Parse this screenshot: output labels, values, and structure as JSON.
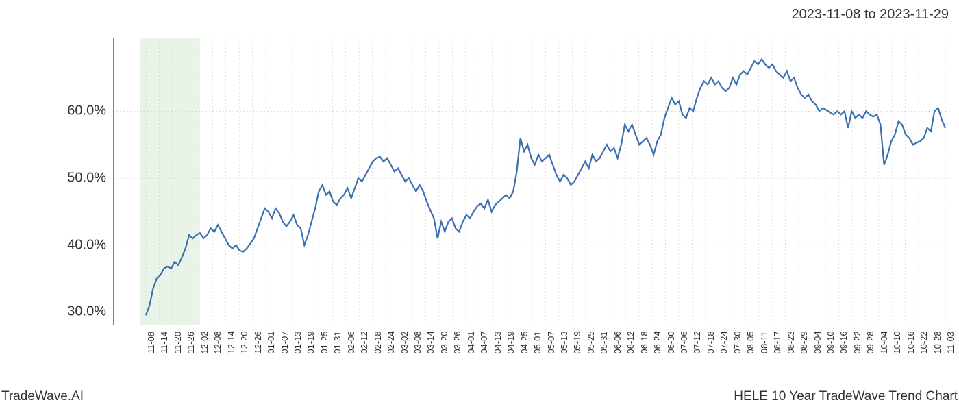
{
  "header": {
    "date_range": "2023-11-08 to 2023-11-29"
  },
  "footer": {
    "left": "TradeWave.AI",
    "right": "HELE 10 Year TradeWave Trend Chart"
  },
  "chart": {
    "type": "line",
    "background_color": "#ffffff",
    "line_color": "#3a6fb0",
    "line_width": 2.2,
    "grid_color": "#cccccc",
    "grid_dash": "2,3",
    "axis_color": "#333333",
    "highlight_band": {
      "start_label": "11-08",
      "end_label": "11-29",
      "fill_color": "#d9ead3",
      "fill_opacity": 0.55
    },
    "ylim": [
      28,
      71
    ],
    "yticks": [
      30.0,
      40.0,
      50.0,
      60.0
    ],
    "ytick_labels": [
      "30.0%",
      "40.0%",
      "50.0%",
      "60.0%"
    ],
    "xtick_labels": [
      "11-08",
      "11-14",
      "11-20",
      "11-26",
      "12-02",
      "12-08",
      "12-14",
      "12-20",
      "12-26",
      "01-01",
      "01-07",
      "01-13",
      "01-19",
      "01-25",
      "01-31",
      "02-06",
      "02-12",
      "02-18",
      "02-24",
      "03-02",
      "03-08",
      "03-14",
      "03-20",
      "03-26",
      "04-01",
      "04-07",
      "04-13",
      "04-19",
      "04-25",
      "05-01",
      "05-07",
      "05-13",
      "05-19",
      "05-25",
      "05-31",
      "06-06",
      "06-12",
      "06-18",
      "06-24",
      "06-30",
      "07-06",
      "07-12",
      "07-18",
      "07-24",
      "07-30",
      "08-05",
      "08-11",
      "08-17",
      "08-23",
      "08-29",
      "09-04",
      "09-10",
      "09-16",
      "09-22",
      "09-28",
      "10-04",
      "10-10",
      "10-16",
      "10-22",
      "10-28",
      "11-03"
    ],
    "label_fontsize": 13,
    "ylabel_fontsize": 20,
    "series": [
      29.5,
      31.0,
      33.5,
      35.0,
      35.5,
      36.5,
      36.8,
      36.5,
      37.5,
      37.0,
      38.2,
      39.5,
      41.5,
      41.0,
      41.5,
      41.8,
      41.0,
      41.5,
      42.5,
      42.0,
      43.0,
      42.0,
      41.0,
      40.0,
      39.5,
      40.0,
      39.2,
      39.0,
      39.5,
      40.2,
      41.0,
      42.5,
      44.0,
      45.5,
      45.0,
      44.0,
      45.5,
      44.8,
      43.5,
      42.8,
      43.5,
      44.5,
      43.0,
      42.5,
      40.0,
      41.5,
      43.5,
      45.5,
      48.0,
      49.0,
      47.5,
      48.0,
      46.5,
      46.0,
      47.0,
      47.5,
      48.5,
      47.0,
      48.5,
      50.0,
      49.5,
      50.5,
      51.5,
      52.5,
      53.0,
      53.2,
      52.5,
      53.0,
      52.0,
      51.0,
      51.5,
      50.5,
      49.5,
      50.0,
      49.0,
      48.0,
      49.0,
      48.0,
      46.5,
      45.2,
      44.0,
      41.0,
      43.5,
      42.0,
      43.5,
      44.0,
      42.5,
      42.0,
      43.5,
      44.5,
      44.0,
      45.0,
      45.8,
      46.2,
      45.5,
      46.8,
      45.0,
      46.0,
      46.5,
      47.0,
      47.5,
      47.0,
      48.0,
      51.0,
      56.0,
      54.0,
      55.0,
      53.0,
      52.0,
      53.5,
      52.5,
      53.0,
      53.5,
      52.0,
      50.5,
      49.5,
      50.5,
      50.0,
      49.0,
      49.5,
      50.5,
      51.5,
      52.5,
      51.5,
      53.5,
      52.5,
      53.0,
      54.0,
      55.0,
      54.0,
      54.5,
      53.0,
      55.0,
      58.0,
      57.0,
      58.0,
      56.5,
      55.0,
      55.5,
      56.0,
      55.0,
      53.5,
      55.5,
      56.5,
      59.0,
      60.5,
      62.0,
      61.0,
      61.5,
      59.5,
      59.0,
      60.5,
      60.0,
      62.0,
      63.5,
      64.5,
      64.0,
      65.0,
      64.0,
      64.5,
      63.5,
      63.0,
      63.5,
      65.0,
      64.0,
      65.5,
      66.0,
      65.5,
      66.5,
      67.5,
      67.0,
      67.8,
      67.0,
      66.5,
      67.0,
      66.0,
      65.5,
      65.0,
      66.0,
      64.5,
      65.0,
      63.5,
      62.5,
      62.0,
      62.5,
      61.5,
      61.0,
      60.0,
      60.5,
      60.2,
      59.8,
      59.5,
      60.0,
      59.5,
      60.0,
      57.5,
      60.0,
      59.0,
      59.5,
      59.0,
      60.0,
      59.5,
      59.2,
      59.5,
      58.0,
      52.0,
      53.5,
      55.5,
      56.5,
      58.5,
      58.0,
      56.5,
      56.0,
      55.0,
      55.3,
      55.5,
      56.0,
      57.5,
      57.0,
      60.0,
      60.5,
      58.8,
      57.5
    ]
  }
}
